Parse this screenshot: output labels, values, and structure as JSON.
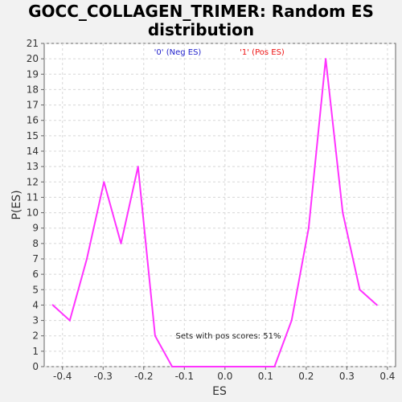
{
  "colors": {
    "background": "#f2f2f2",
    "plot_bg": "#ffffff",
    "line": "#ff33ff",
    "neg_legend": "#2222cc",
    "pos_legend": "#ee1111",
    "grid": "#d8d8d8"
  },
  "chart_data": {
    "type": "line",
    "title_lines": [
      "GOCC_COLLAGEN_TRIMER: Random ES",
      "distribution"
    ],
    "xlabel": "ES",
    "ylabel": "P(ES)",
    "xlim": [
      -0.445,
      0.42
    ],
    "ylim": [
      0,
      21
    ],
    "x_ticks": [
      -0.4,
      -0.3,
      -0.2,
      -0.1,
      0.0,
      0.1,
      0.2,
      0.3,
      0.4
    ],
    "x_tick_labels": [
      "-0.4",
      "-0.3",
      "-0.2",
      "-0.1",
      "0.0",
      "0.1",
      "0.2",
      "0.3",
      "0.4"
    ],
    "y_ticks": [
      0,
      1,
      2,
      3,
      4,
      5,
      6,
      7,
      8,
      9,
      10,
      11,
      12,
      13,
      14,
      15,
      16,
      17,
      18,
      19,
      20,
      21
    ],
    "y_tick_labels": [
      "0",
      "1",
      "2",
      "3",
      "4",
      "5",
      "6",
      "7",
      "8",
      "9",
      "10",
      "11",
      "12",
      "13",
      "14",
      "15",
      "16",
      "17",
      "18",
      "19",
      "20",
      "21"
    ],
    "grid": true,
    "legend": [
      {
        "label": "'0' (Neg ES)",
        "color": "#2222cc"
      },
      {
        "label": "'1' (Pos ES)",
        "color": "#ee1111"
      }
    ],
    "legend_placement": "top-center",
    "annotation": "Sets with pos scores: 51%",
    "series": [
      {
        "name": "Random ES distribution",
        "x": [
          -0.424,
          -0.382,
          -0.34,
          -0.298,
          -0.256,
          -0.214,
          -0.172,
          -0.13,
          -0.088,
          -0.046,
          -0.004,
          0.038,
          0.08,
          0.122,
          0.164,
          0.206,
          0.248,
          0.29,
          0.332,
          0.374
        ],
        "y": [
          4,
          3,
          7,
          12,
          8,
          13,
          2,
          0,
          0,
          0,
          0,
          0,
          0,
          0,
          3,
          9,
          20,
          10,
          5,
          4
        ]
      }
    ]
  }
}
